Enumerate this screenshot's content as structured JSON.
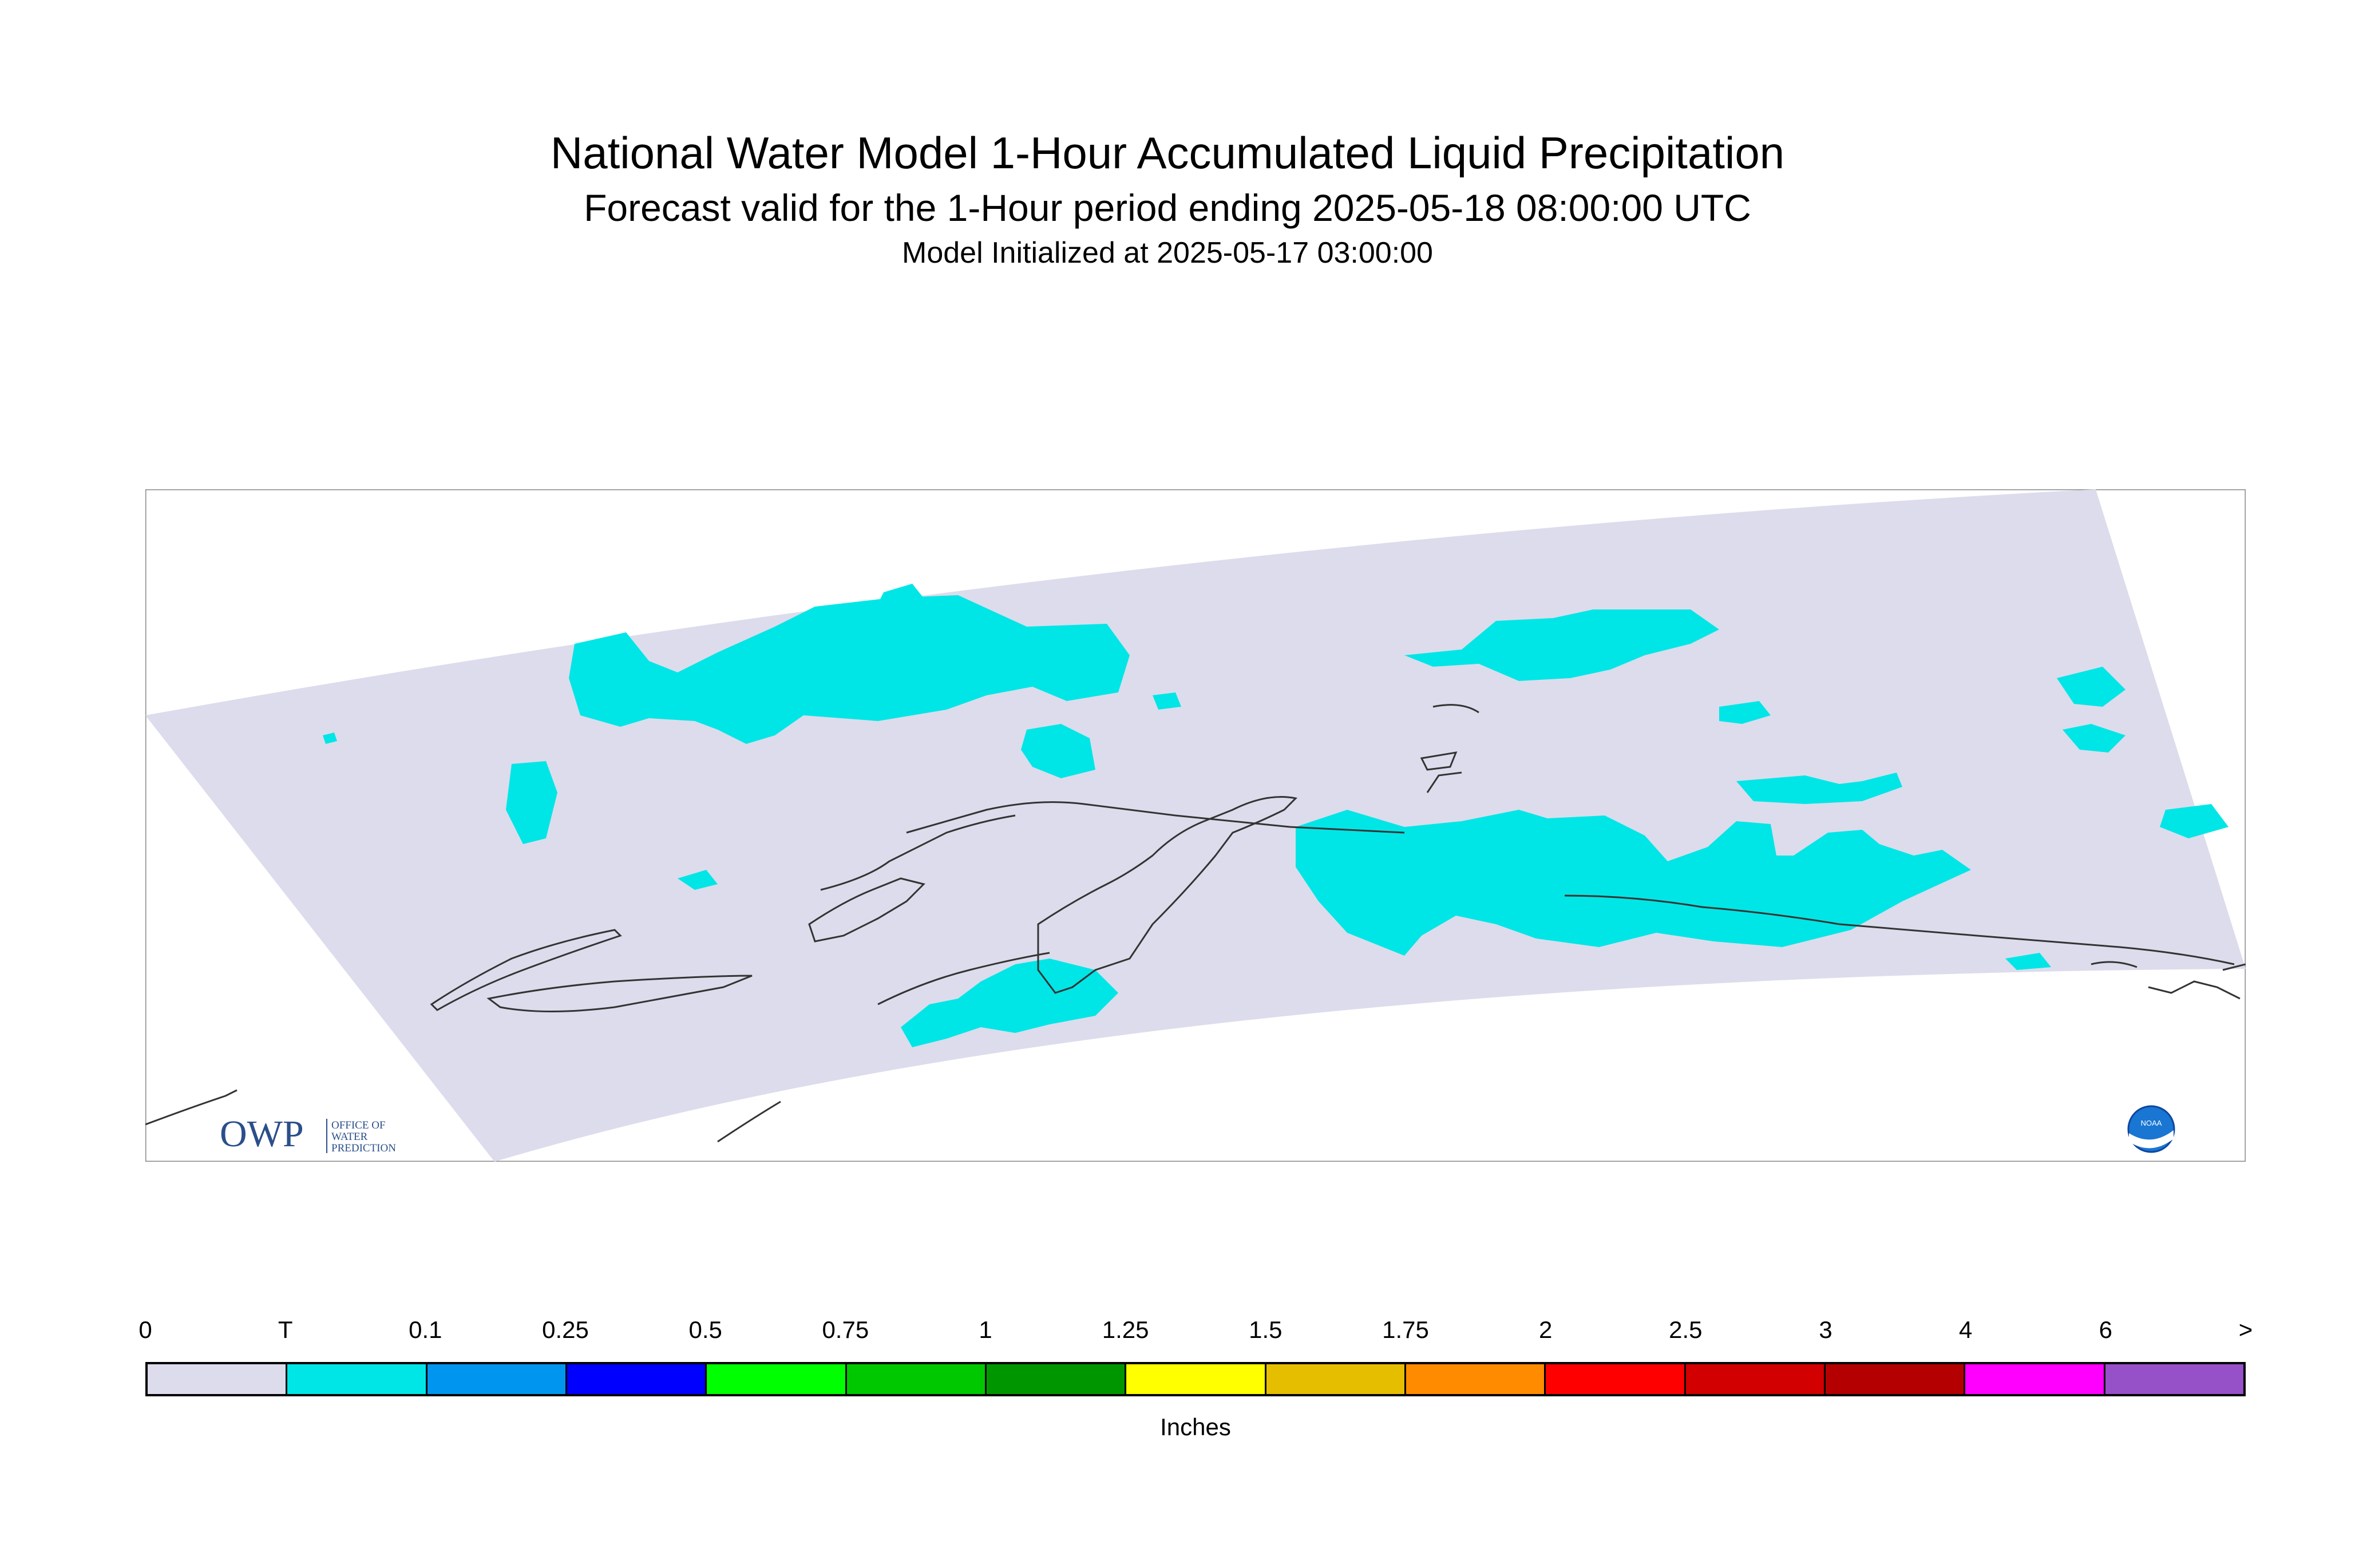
{
  "header": {
    "title": "National Water Model 1-Hour Accumulated Liquid Precipitation",
    "subtitle": "Forecast valid for the 1-Hour period ending 2025-05-18 08:00:00 UTC",
    "init": "Model Initialized at 2025-05-17 03:00:00"
  },
  "map": {
    "domain_fill": "#dcdcec",
    "precip_fill": "#00e6e6",
    "coast_color": "#333333",
    "logos": {
      "owp": {
        "letters": "OWP",
        "line1": "OFFICE OF",
        "line2": "WATER",
        "line3": "PREDICTION"
      },
      "noaa": {
        "text": "NOAA"
      }
    }
  },
  "legend": {
    "labels": [
      "0",
      "T",
      "0.1",
      "0.25",
      "0.5",
      "0.75",
      "1",
      "1.25",
      "1.5",
      "1.75",
      "2",
      "2.5",
      "3",
      "4",
      "6",
      ">"
    ],
    "colors": [
      "#dcdcec",
      "#00e6e6",
      "#0096f0",
      "#0000ff",
      "#00ff00",
      "#00c800",
      "#009600",
      "#ffff00",
      "#e6be00",
      "#ff8c00",
      "#ff0000",
      "#d20000",
      "#b40000",
      "#ff00ff",
      "#9650c8"
    ],
    "units": "Inches"
  }
}
